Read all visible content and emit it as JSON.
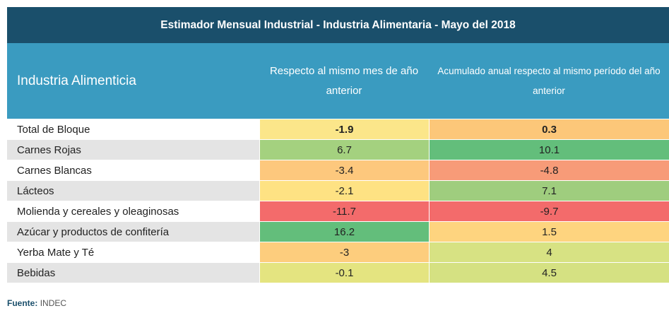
{
  "table": {
    "title": "Estimador Mensual Industrial - Industria Alimentaria - Mayo del 2018",
    "headers": {
      "col1": "Industria Alimenticia",
      "col2": "Respecto al mismo mes de año anterior",
      "col3": "Acumulado anual respecto al mismo período del año anterior"
    },
    "colors": {
      "title_bg": "#1a4f6b",
      "header_bg": "#3a9bc0"
    },
    "rows": [
      {
        "label": "Total de Bloque",
        "v1": "-1.9",
        "v2": "0.3",
        "c1": "#fbe68a",
        "c2": "#fcc779",
        "bold": true
      },
      {
        "label": "Carnes Rojas",
        "v1": "6.7",
        "v2": "10.1",
        "c1": "#a4d17f",
        "c2": "#63be7b",
        "bold": false
      },
      {
        "label": "Carnes Blancas",
        "v1": "-3.4",
        "v2": "-4.8",
        "c1": "#fdc87d",
        "c2": "#f79b78",
        "bold": false
      },
      {
        "label": "Lácteos",
        "v1": "-2.1",
        "v2": "7.1",
        "c1": "#fee283",
        "c2": "#9fcd7e",
        "bold": false
      },
      {
        "label": "Molienda y cereales y oleaginosas",
        "v1": "-11.7",
        "v2": "-9.7",
        "c1": "#f36b6b",
        "c2": "#f36b6b",
        "bold": false
      },
      {
        "label": "Azúcar y productos de confitería",
        "v1": "16.2",
        "v2": "1.5",
        "c1": "#63be7b",
        "c2": "#fed47f",
        "bold": false
      },
      {
        "label": "Yerba Mate y Té",
        "v1": "-3",
        "v2": "4",
        "c1": "#fdcd7d",
        "c2": "#d7e283",
        "bold": false
      },
      {
        "label": "Bebidas",
        "v1": "-0.1",
        "v2": "4.5",
        "c1": "#e4e480",
        "c2": "#d5e182",
        "bold": false
      }
    ]
  },
  "footer": {
    "label": "Fuente:",
    "value": "INDEC"
  }
}
